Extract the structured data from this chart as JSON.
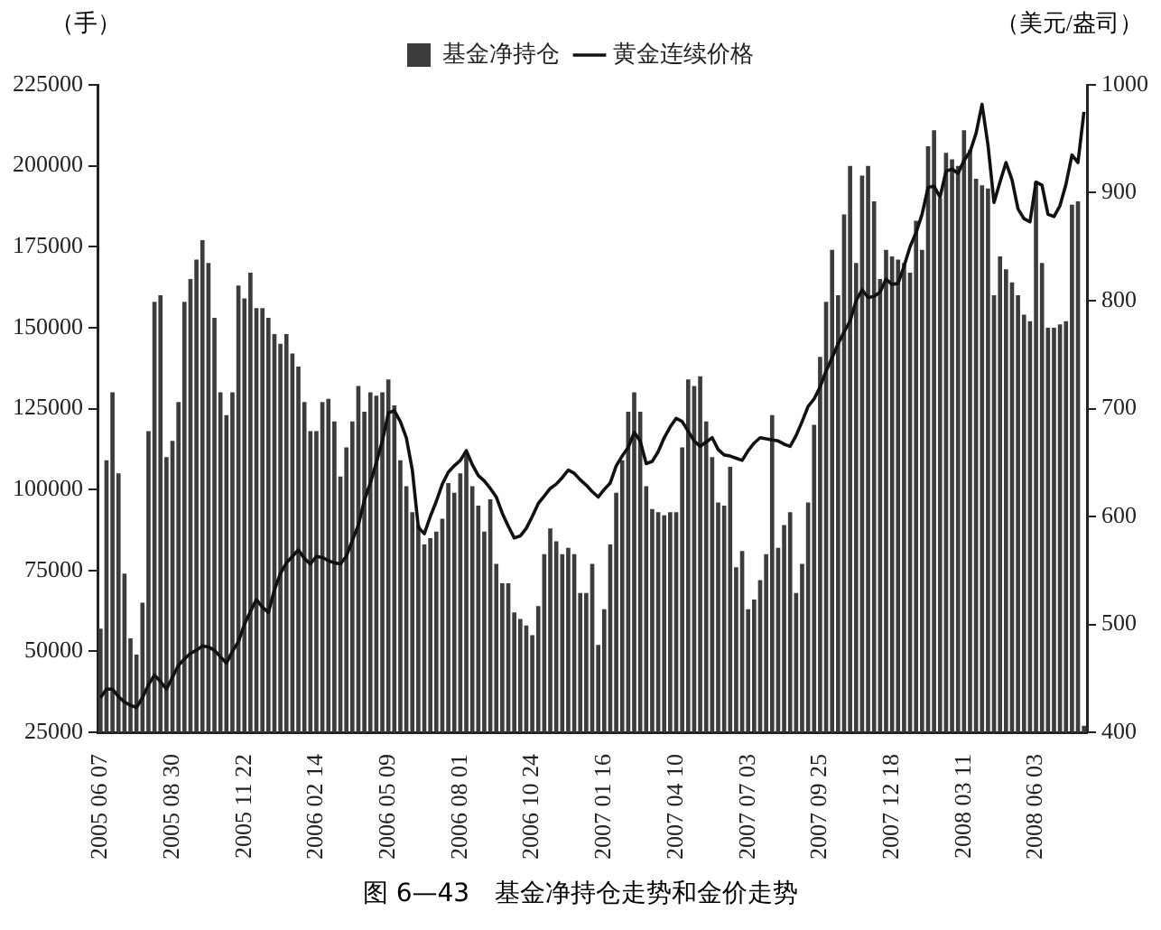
{
  "chart_data": {
    "type": "bar",
    "title": "图 6—43　基金净持仓走势和金价走势",
    "ylabel": "（手）",
    "y2label": "（美元/盎司）",
    "legend": "top",
    "categories": [
      "2005 06 07",
      null,
      null,
      null,
      null,
      null,
      null,
      null,
      null,
      null,
      null,
      null,
      "2005 08 30",
      null,
      null,
      null,
      null,
      null,
      null,
      null,
      null,
      null,
      null,
      null,
      "2005 11 22",
      null,
      null,
      null,
      null,
      null,
      null,
      null,
      null,
      null,
      null,
      null,
      "2006 02 14",
      null,
      null,
      null,
      null,
      null,
      null,
      null,
      null,
      null,
      null,
      null,
      "2006 05 09",
      null,
      null,
      null,
      null,
      null,
      null,
      null,
      null,
      null,
      null,
      null,
      "2006 08 01",
      null,
      null,
      null,
      null,
      null,
      null,
      null,
      null,
      null,
      null,
      null,
      "2006 10 24",
      null,
      null,
      null,
      null,
      null,
      null,
      null,
      null,
      null,
      null,
      null,
      "2007 01 16",
      null,
      null,
      null,
      null,
      null,
      null,
      null,
      null,
      null,
      null,
      null,
      "2007 04 10",
      null,
      null,
      null,
      null,
      null,
      null,
      null,
      null,
      null,
      null,
      null,
      "2007 07 03",
      null,
      null,
      null,
      null,
      null,
      null,
      null,
      null,
      null,
      null,
      null,
      "2007 09 25",
      null,
      null,
      null,
      null,
      null,
      null,
      null,
      null,
      null,
      null,
      null,
      "2007 12 18",
      null,
      null,
      null,
      null,
      null,
      null,
      null,
      null,
      null,
      null,
      null,
      "2008 03 11",
      null,
      null,
      null,
      null,
      null,
      null,
      null,
      null,
      null,
      null,
      null,
      "2008 06 03",
      null,
      null,
      null,
      null,
      null,
      null,
      null,
      null
    ],
    "ylim": [
      25000,
      225000
    ],
    "yticks": [
      25000,
      50000,
      75000,
      100000,
      125000,
      150000,
      175000,
      200000,
      225000
    ],
    "y2lim": [
      400,
      1000
    ],
    "y2ticks": [
      400,
      500,
      600,
      700,
      800,
      900,
      1000
    ],
    "series": [
      {
        "name": "基金净持仓",
        "color": "#3c3c3c",
        "values": [
          57000,
          109000,
          130000,
          105000,
          74000,
          54000,
          49000,
          65000,
          118000,
          158000,
          160000,
          110000,
          115000,
          127000,
          158000,
          165000,
          171000,
          177000,
          170000,
          153000,
          130000,
          123000,
          130000,
          163000,
          159000,
          167000,
          156000,
          156000,
          153000,
          148000,
          145000,
          148000,
          142000,
          138000,
          127000,
          118000,
          118000,
          127000,
          128000,
          121000,
          104000,
          113000,
          121000,
          132000,
          124000,
          130000,
          129000,
          130000,
          134000,
          126000,
          109000,
          101000,
          93000,
          89000,
          83000,
          85000,
          87000,
          91000,
          102000,
          99000,
          105000,
          111000,
          101000,
          95000,
          87000,
          97000,
          77000,
          71000,
          71000,
          62000,
          60000,
          58000,
          55000,
          64000,
          80000,
          88000,
          84000,
          80000,
          82000,
          80000,
          68000,
          68000,
          77000,
          52000,
          63000,
          83000,
          99000,
          109000,
          124000,
          130000,
          124000,
          101000,
          94000,
          93000,
          92000,
          93000,
          93000,
          113000,
          134000,
          132000,
          135000,
          121000,
          110000,
          96000,
          95000,
          107000,
          76000,
          81000,
          63000,
          66000,
          72000,
          80000,
          123000,
          82000,
          89000,
          93000,
          68000,
          77000,
          96000,
          120000,
          141000,
          158000,
          174000,
          160000,
          185000,
          200000,
          170000,
          197000,
          200000,
          189000,
          165000,
          174000,
          172000,
          171000,
          170000,
          167000,
          183000,
          174000,
          206000,
          211000,
          190000,
          204000,
          202000,
          200000,
          211000,
          205000,
          196000,
          194000,
          193000,
          160000,
          172000,
          168000,
          164000,
          160000,
          154000,
          152000,
          195000,
          170000,
          150000,
          150000,
          151000,
          152000,
          188000,
          189000,
          27000
        ]
      },
      {
        "name": "黄金连续价格",
        "type": "line",
        "axis": "y2",
        "color": "#111111",
        "values": [
          432,
          440,
          440,
          433,
          428,
          425,
          423,
          432,
          444,
          453,
          447,
          440,
          451,
          462,
          468,
          473,
          476,
          480,
          479,
          476,
          470,
          464,
          475,
          484,
          500,
          512,
          523,
          516,
          511,
          532,
          547,
          557,
          563,
          569,
          561,
          556,
          563,
          562,
          559,
          557,
          556,
          563,
          578,
          592,
          615,
          631,
          650,
          670,
          696,
          698,
          688,
          673,
          643,
          590,
          584,
          600,
          614,
          630,
          641,
          647,
          652,
          661,
          648,
          638,
          633,
          626,
          618,
          603,
          591,
          580,
          582,
          589,
          600,
          612,
          619,
          626,
          630,
          636,
          643,
          640,
          634,
          629,
          623,
          618,
          625,
          631,
          647,
          656,
          664,
          678,
          670,
          649,
          651,
          660,
          673,
          683,
          691,
          688,
          679,
          670,
          665,
          669,
          673,
          662,
          657,
          656,
          654,
          652,
          661,
          668,
          673,
          672,
          671,
          670,
          667,
          665,
          675,
          688,
          702,
          709,
          720,
          735,
          747,
          760,
          771,
          781,
          800,
          810,
          803,
          804,
          808,
          820,
          815,
          816,
          832,
          850,
          863,
          880,
          905,
          906,
          896,
          920,
          922,
          918,
          930,
          938,
          955,
          982,
          944,
          891,
          910,
          928,
          912,
          885,
          876,
          873,
          910,
          907,
          880,
          878,
          888,
          908,
          935,
          928,
          975
        ]
      }
    ]
  }
}
